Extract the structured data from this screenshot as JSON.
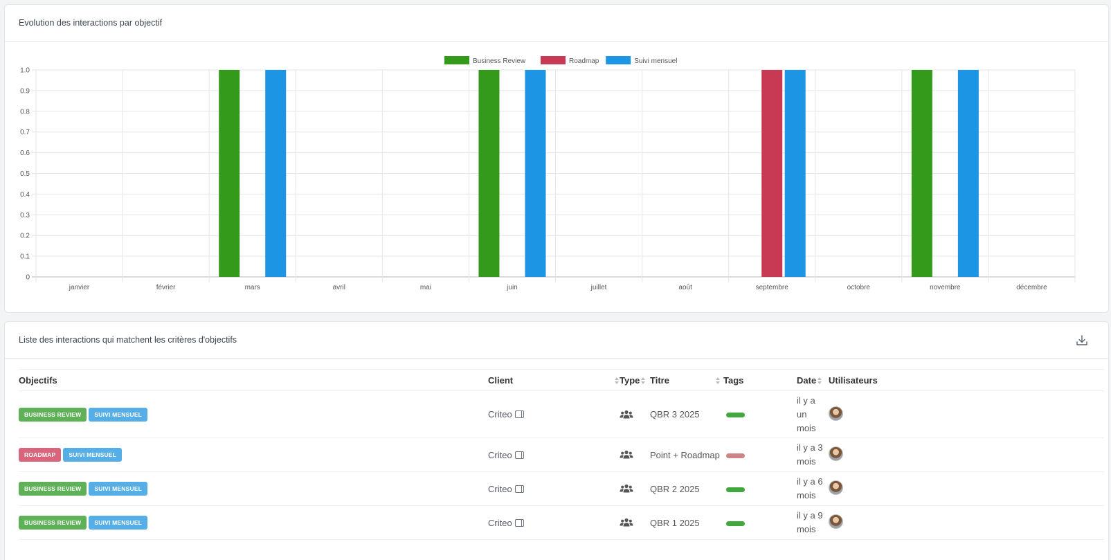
{
  "chart_card": {
    "title": "Evolution des interactions par objectif"
  },
  "chart_data": {
    "type": "bar",
    "categories": [
      "janvier",
      "février",
      "mars",
      "avril",
      "mai",
      "juin",
      "juillet",
      "août",
      "septembre",
      "octobre",
      "novembre",
      "décembre"
    ],
    "series": [
      {
        "name": "Business Review",
        "color": "#339a1b",
        "values": [
          0,
          0,
          1,
          0,
          0,
          1,
          0,
          0,
          0,
          0,
          1,
          0
        ]
      },
      {
        "name": "Roadmap",
        "color": "#c83953",
        "values": [
          0,
          0,
          0,
          0,
          0,
          0,
          0,
          0,
          1,
          0,
          0,
          0
        ]
      },
      {
        "name": "Suivi mensuel",
        "color": "#1c96e4",
        "values": [
          0,
          0,
          1,
          0,
          0,
          1,
          0,
          0,
          1,
          0,
          1,
          0
        ]
      }
    ],
    "yticks": [
      "0",
      "0.1",
      "0.2",
      "0.3",
      "0.4",
      "0.5",
      "0.6",
      "0.7",
      "0.8",
      "0.9",
      "1.0"
    ],
    "ylim": [
      0,
      1
    ],
    "grid": true,
    "legend": "top"
  },
  "list_card": {
    "title": "Liste des interactions qui matchent les critères d'objectifs",
    "download_icon": "download-icon"
  },
  "table": {
    "headers": {
      "objectifs": "Objectifs",
      "client": "Client",
      "type": "Type",
      "titre": "Titre",
      "tags": "Tags",
      "date": "Date",
      "utilisateurs": "Utilisateurs"
    },
    "rows": [
      {
        "badges": [
          {
            "label": "Business Review",
            "color": "#5fb157"
          },
          {
            "label": "Suivi mensuel",
            "color": "#56aee6"
          }
        ],
        "client": "Criteo",
        "type_icon": "users-icon",
        "titre": "QBR 3 2025",
        "tag_color": "#41a83e",
        "date": "il y a un mois"
      },
      {
        "badges": [
          {
            "label": "Roadmap",
            "color": "#d9657c"
          },
          {
            "label": "Suivi mensuel",
            "color": "#56aee6"
          }
        ],
        "client": "Criteo",
        "type_icon": "users-icon",
        "titre": "Point + Roadmap",
        "tag_color": "#cf8585",
        "date": "il y a 3 mois"
      },
      {
        "badges": [
          {
            "label": "Business Review",
            "color": "#5fb157"
          },
          {
            "label": "Suivi mensuel",
            "color": "#56aee6"
          }
        ],
        "client": "Criteo",
        "type_icon": "users-icon",
        "titre": "QBR 2 2025",
        "tag_color": "#41a83e",
        "date": "il y a 6 mois"
      },
      {
        "badges": [
          {
            "label": "Business Review",
            "color": "#5fb157"
          },
          {
            "label": "Suivi mensuel",
            "color": "#56aee6"
          }
        ],
        "client": "Criteo",
        "type_icon": "users-icon",
        "titre": "QBR 1 2025",
        "tag_color": "#41a83e",
        "date": "il y a 9 mois"
      }
    ]
  }
}
